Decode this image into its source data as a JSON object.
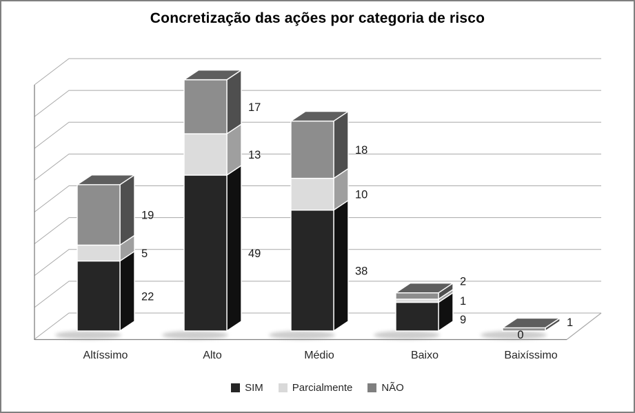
{
  "title": "Concretização das ações por categoria de risco",
  "chart_data": {
    "type": "bar",
    "subtype": "stacked-column-3d",
    "title": "Concretização das ações por categoria de risco",
    "categories": [
      "Altíssimo",
      "Alto",
      "Médio",
      "Baixo",
      "Baixíssimo"
    ],
    "series": [
      {
        "name": "SIM",
        "color": "#262626",
        "values": [
          22,
          49,
          38,
          9,
          0
        ]
      },
      {
        "name": "Parcialmente",
        "color": "#d9d9d9",
        "values": [
          5,
          13,
          10,
          1,
          0
        ]
      },
      {
        "name": "NÃO",
        "color": "#7f7f7f",
        "values": [
          19,
          17,
          18,
          2,
          1
        ]
      }
    ],
    "totals": [
      46,
      79,
      66,
      12,
      1
    ],
    "data_labels_visible": true,
    "y_axis": {
      "min": 0,
      "max": 80,
      "gridline_step": 10,
      "tick_labels_visible": false
    },
    "grid": "horizontal",
    "legend_position": "bottom"
  },
  "colors": {
    "gridline": "#a8a8a8",
    "axis": "#7f7f7f",
    "data_label": "#1a1a1a",
    "background": "#ffffff"
  }
}
